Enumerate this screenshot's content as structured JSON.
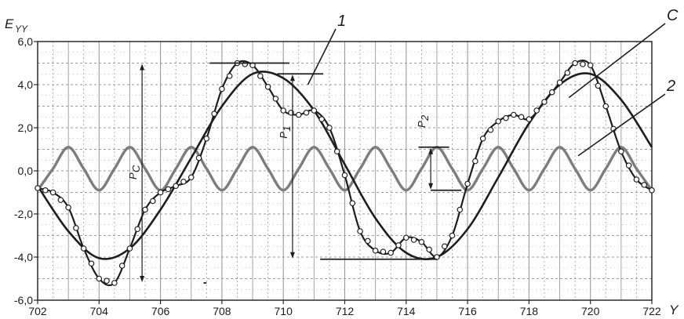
{
  "chart_data": {
    "type": "line",
    "ylabel": "E",
    "ylabel_sub": "YY",
    "xlabel": "Y",
    "xlim": [
      702,
      722
    ],
    "ylim": [
      -6,
      6
    ],
    "x_ticks": [
      702,
      704,
      706,
      708,
      710,
      712,
      714,
      716,
      718,
      720,
      722
    ],
    "x_tick_labels": [
      "702",
      "704",
      "706",
      "708",
      "710",
      "712",
      "714",
      "716",
      "718",
      "720",
      "722"
    ],
    "y_ticks": [
      -6,
      -4,
      -2,
      0,
      2,
      4,
      6
    ],
    "y_tick_labels": [
      "-6,0",
      "-4,0",
      "-2,0",
      "0,0",
      "2,0",
      "4,0",
      "6,0"
    ],
    "grid": true,
    "series": [
      {
        "name": "1",
        "values_note_free": true,
        "x": [
          702,
          703,
          704,
          705,
          706,
          707,
          708,
          709,
          710,
          711,
          712,
          713,
          714,
          715,
          716,
          717,
          718,
          719,
          720,
          721,
          722
        ],
        "y": [
          -0.7,
          -2.8,
          -4.05,
          -3.6,
          -1.8,
          0.6,
          3.0,
          4.5,
          4.3,
          2.8,
          0.3,
          -2.2,
          -3.8,
          -4.0,
          -2.7,
          -0.3,
          2.2,
          4.0,
          4.5,
          3.3,
          1.1
        ]
      },
      {
        "name": "C",
        "x": [
          702,
          702.5,
          703,
          703.5,
          704,
          704.5,
          705,
          705.5,
          706,
          706.5,
          707,
          707.5,
          708,
          708.5,
          709,
          709.5,
          710,
          710.5,
          711,
          711.5,
          712,
          712.5,
          713,
          713.5,
          714,
          714.5,
          715,
          715.5,
          716,
          716.5,
          717,
          717.5,
          718,
          718.5,
          719,
          719.5,
          720,
          720.5,
          721,
          721.5,
          722
        ],
        "y": [
          -0.8,
          -1.0,
          -1.7,
          -3.6,
          -5.0,
          -5.2,
          -3.6,
          -1.8,
          -1.0,
          -0.7,
          -0.3,
          1.5,
          3.8,
          5.0,
          4.9,
          3.9,
          2.8,
          2.6,
          2.8,
          2.0,
          -0.2,
          -2.8,
          -3.7,
          -3.8,
          -3.1,
          -3.3,
          -4.0,
          -3.0,
          -0.6,
          1.5,
          2.3,
          2.6,
          2.4,
          3.2,
          4.1,
          5.0,
          4.9,
          3.0,
          0.9,
          -0.4,
          -0.9
        ]
      },
      {
        "name": "2",
        "x": [
          702,
          702.5,
          703,
          703.5,
          704,
          704.5,
          705,
          705.5,
          706,
          706.5,
          707,
          707.5,
          708,
          708.5,
          709,
          709.5,
          710,
          710.5,
          711,
          711.5,
          712,
          712.5,
          713,
          713.5,
          714,
          714.5,
          715,
          715.5,
          716,
          716.5,
          717,
          717.5,
          718,
          718.5,
          719,
          719.5,
          720,
          720.5,
          721,
          721.5,
          722
        ],
        "y": [
          -0.9,
          0.1,
          1.1,
          0.1,
          -0.9,
          0.1,
          1.1,
          0.1,
          -0.9,
          0.1,
          1.1,
          0.1,
          -0.9,
          0.1,
          1.1,
          0.1,
          -0.9,
          0.1,
          1.1,
          0.1,
          -0.9,
          0.1,
          1.1,
          0.1,
          -0.9,
          0.1,
          1.1,
          0.1,
          -0.9,
          0.1,
          1.1,
          0.1,
          -0.9,
          0.1,
          1.1,
          0.1,
          -0.9,
          0.1,
          1.1,
          0.1,
          -0.9
        ]
      }
    ],
    "annotations": {
      "pc_label": "P",
      "pc_sub": "C",
      "p1_label": "P",
      "p1_sub": "1",
      "p2_label": "P",
      "p2_sub": "2",
      "pc_range": [
        708.5,
        -5.2,
        5.0
      ],
      "p1_range": [
        710.9,
        -4.1,
        4.5
      ],
      "p2_range": [
        715.2,
        -0.9,
        1.1
      ]
    },
    "colors": {
      "curve_1": "#1e1e1e",
      "curve_C": "#1e1e1e",
      "curve_2": "#7d7d7d",
      "grid": "#9a9a9a",
      "marker_fill": "#ffffff"
    }
  }
}
